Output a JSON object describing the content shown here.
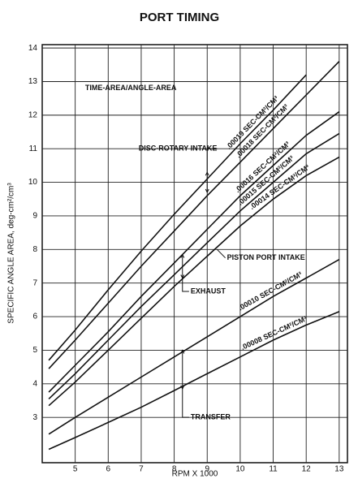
{
  "chart_data": {
    "type": "line",
    "title": "PORT TIMING",
    "x_label": "RPM X 1000",
    "y_label": "SPECIFIC ANGLE AREA, deg-cm²/cm³",
    "x": [
      4.2,
      5,
      6,
      7,
      8,
      9,
      10,
      11,
      12,
      13
    ],
    "series": [
      {
        "name": ".00019 SEC-CM²/CM³",
        "color": "#111111",
        "values": [
          4.7,
          5.6,
          6.8,
          7.95,
          9.05,
          10.1,
          11.15,
          12.15,
          13.2,
          null
        ]
      },
      {
        "name": ".00018 SEC-CM²/CM³",
        "color": "#111111",
        "values": [
          4.45,
          5.3,
          6.4,
          7.5,
          8.55,
          9.6,
          10.6,
          11.6,
          12.6,
          13.6
        ]
      },
      {
        "name": ".00016 SEC-CM²/CM³",
        "color": "#111111",
        "values": [
          3.75,
          4.55,
          5.55,
          6.6,
          7.6,
          8.6,
          9.6,
          10.5,
          11.4,
          12.1
        ]
      },
      {
        "name": ".00015 SEC-CM²/CM³",
        "color": "#111111",
        "values": [
          3.55,
          4.3,
          5.3,
          6.3,
          7.25,
          8.2,
          9.15,
          10.0,
          10.85,
          11.45
        ]
      },
      {
        "name": ".00014 SEC-CM²/CM³",
        "color": "#111111",
        "values": [
          3.35,
          4.05,
          5.0,
          5.95,
          6.9,
          7.8,
          8.7,
          9.5,
          10.2,
          10.75
        ]
      },
      {
        "name": ".00010 SEC-CM²/CM³",
        "color": "#111111",
        "values": [
          2.5,
          3.0,
          3.6,
          4.2,
          4.8,
          5.4,
          6.0,
          6.6,
          7.15,
          7.7
        ]
      },
      {
        "name": ".00008 SEC-CM²/CM³",
        "color": "#111111",
        "values": [
          2.05,
          2.4,
          2.85,
          3.3,
          3.8,
          4.3,
          4.8,
          5.3,
          5.75,
          6.15
        ]
      }
    ],
    "annotations": [
      "TIME-AREA/ANGLE-AREA",
      "DISC-ROTARY INTAKE",
      "PISTON PORT INTAKE",
      "EXHAUST",
      "TRANSFER"
    ],
    "xlim": [
      4.0,
      13.25
    ],
    "ylim": [
      1.65,
      14.1
    ],
    "xticks": [
      5,
      6,
      7,
      8,
      9,
      10,
      11,
      12,
      13
    ],
    "yticks": [
      3,
      4,
      5,
      6,
      7,
      8,
      9,
      10,
      11,
      12,
      13,
      14
    ],
    "grid": true
  }
}
